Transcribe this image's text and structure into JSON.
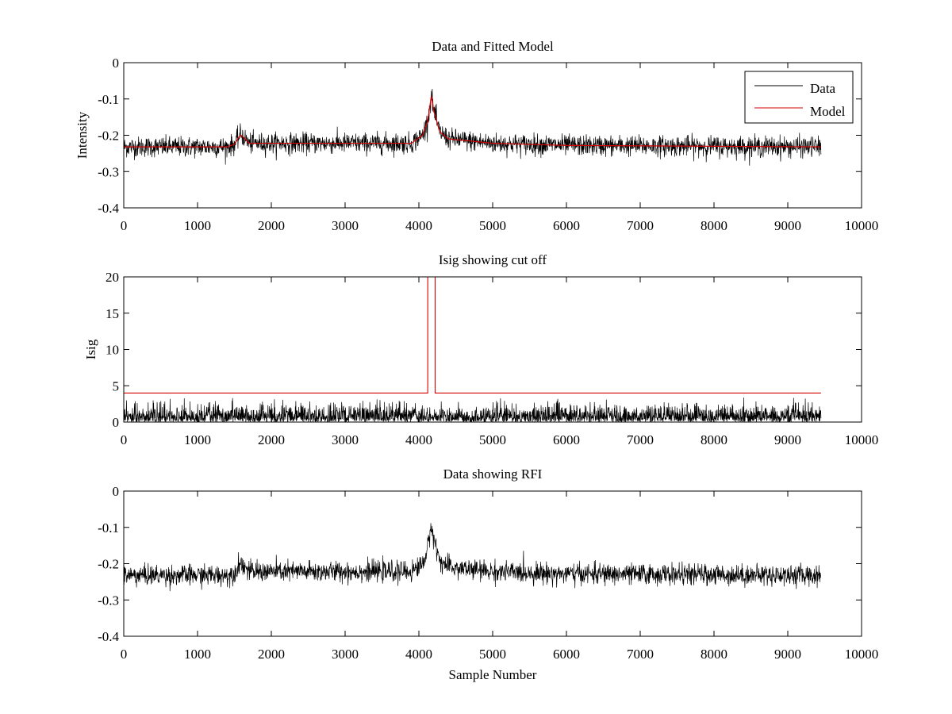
{
  "colors": {
    "data": "#000000",
    "model": "#d40000",
    "background": "#ffffff"
  },
  "chart_data": [
    {
      "id": "top",
      "type": "line",
      "title": "Data and Fitted Model",
      "xlabel": "",
      "ylabel": "Intensity",
      "xlim": [
        0,
        10000
      ],
      "ylim": [
        -0.4,
        0
      ],
      "xticks": [
        0,
        1000,
        2000,
        3000,
        4000,
        5000,
        6000,
        7000,
        8000,
        9000,
        10000
      ],
      "xtick_labels": [
        "0",
        "1000",
        "2000",
        "3000",
        "4000",
        "5000",
        "6000",
        "7000",
        "8000",
        "9000",
        "10000"
      ],
      "yticks": [
        0,
        -0.1,
        -0.2,
        -0.3,
        -0.4
      ],
      "ytick_labels": [
        "0",
        "-0.1",
        "-0.2",
        "-0.3",
        "-0.4"
      ],
      "legend": {
        "placement": "top-right",
        "entries": [
          "Data",
          "Model"
        ]
      },
      "series": [
        {
          "name": "Data",
          "color": "#000000",
          "kind": "noisy",
          "x_range": [
            0,
            9450
          ],
          "noise": 0.014,
          "profile": [
            [
              0,
              -0.232
            ],
            [
              1400,
              -0.232
            ],
            [
              1500,
              -0.225
            ],
            [
              1560,
              -0.205
            ],
            [
              1590,
              -0.195
            ],
            [
              1620,
              -0.205
            ],
            [
              1700,
              -0.222
            ],
            [
              3900,
              -0.222
            ],
            [
              4050,
              -0.2
            ],
            [
              4120,
              -0.16
            ],
            [
              4170,
              -0.09
            ],
            [
              4200,
              -0.13
            ],
            [
              4280,
              -0.19
            ],
            [
              4400,
              -0.21
            ],
            [
              5000,
              -0.222
            ],
            [
              6000,
              -0.228
            ],
            [
              9450,
              -0.232
            ]
          ]
        },
        {
          "name": "Model",
          "color": "#d40000",
          "kind": "smooth",
          "x_range": [
            0,
            9450
          ],
          "profile": [
            [
              0,
              -0.232
            ],
            [
              1400,
              -0.232
            ],
            [
              1500,
              -0.225
            ],
            [
              1560,
              -0.205
            ],
            [
              1590,
              -0.2
            ],
            [
              1620,
              -0.205
            ],
            [
              1700,
              -0.222
            ],
            [
              3900,
              -0.222
            ],
            [
              4050,
              -0.2
            ],
            [
              4120,
              -0.16
            ],
            [
              4170,
              -0.09
            ],
            [
              4200,
              -0.13
            ],
            [
              4280,
              -0.19
            ],
            [
              4400,
              -0.21
            ],
            [
              5000,
              -0.222
            ],
            [
              6000,
              -0.228
            ],
            [
              9450,
              -0.232
            ]
          ]
        }
      ]
    },
    {
      "id": "middle",
      "type": "line",
      "title": "Isig showing cut off",
      "xlabel": "",
      "ylabel": "Isig",
      "xlim": [
        0,
        10000
      ],
      "ylim": [
        0,
        20
      ],
      "xticks": [
        0,
        1000,
        2000,
        3000,
        4000,
        5000,
        6000,
        7000,
        8000,
        9000,
        10000
      ],
      "xtick_labels": [
        "0",
        "1000",
        "2000",
        "3000",
        "4000",
        "5000",
        "6000",
        "7000",
        "8000",
        "9000",
        "10000"
      ],
      "yticks": [
        0,
        5,
        10,
        15,
        20
      ],
      "ytick_labels": [
        "0",
        "5",
        "10",
        "15",
        "20"
      ],
      "series": [
        {
          "name": "Isig",
          "color": "#000000",
          "kind": "abs-noise",
          "x_range": [
            0,
            9450
          ],
          "noise": 1.1,
          "max": 3.6
        },
        {
          "name": "Cut off",
          "color": "#d40000",
          "kind": "steps",
          "points": [
            [
              0,
              4
            ],
            [
              4120,
              4
            ],
            [
              4120,
              20
            ],
            [
              4220,
              20
            ],
            [
              4220,
              4
            ],
            [
              9450,
              4
            ]
          ]
        }
      ]
    },
    {
      "id": "bottom",
      "type": "line",
      "title": "Data showing RFI",
      "xlabel": "Sample Number",
      "ylabel": "",
      "xlim": [
        0,
        10000
      ],
      "ylim": [
        -0.4,
        0
      ],
      "xticks": [
        0,
        1000,
        2000,
        3000,
        4000,
        5000,
        6000,
        7000,
        8000,
        9000,
        10000
      ],
      "xtick_labels": [
        "0",
        "1000",
        "2000",
        "3000",
        "4000",
        "5000",
        "6000",
        "7000",
        "8000",
        "9000",
        "10000"
      ],
      "yticks": [
        0,
        -0.1,
        -0.2,
        -0.3,
        -0.4
      ],
      "ytick_labels": [
        "0",
        "-0.1",
        "-0.2",
        "-0.3",
        "-0.4"
      ],
      "series": [
        {
          "name": "Data",
          "color": "#000000",
          "kind": "noisy",
          "x_range": [
            0,
            9450
          ],
          "noise": 0.014,
          "profile": [
            [
              0,
              -0.232
            ],
            [
              1400,
              -0.232
            ],
            [
              1500,
              -0.225
            ],
            [
              1560,
              -0.205
            ],
            [
              1590,
              -0.195
            ],
            [
              1620,
              -0.205
            ],
            [
              1700,
              -0.222
            ],
            [
              3900,
              -0.222
            ],
            [
              4050,
              -0.2
            ],
            [
              4120,
              -0.16
            ],
            [
              4170,
              -0.09
            ],
            [
              4200,
              -0.13
            ],
            [
              4280,
              -0.19
            ],
            [
              4400,
              -0.21
            ],
            [
              5000,
              -0.222
            ],
            [
              6000,
              -0.228
            ],
            [
              9450,
              -0.232
            ]
          ]
        }
      ]
    }
  ]
}
